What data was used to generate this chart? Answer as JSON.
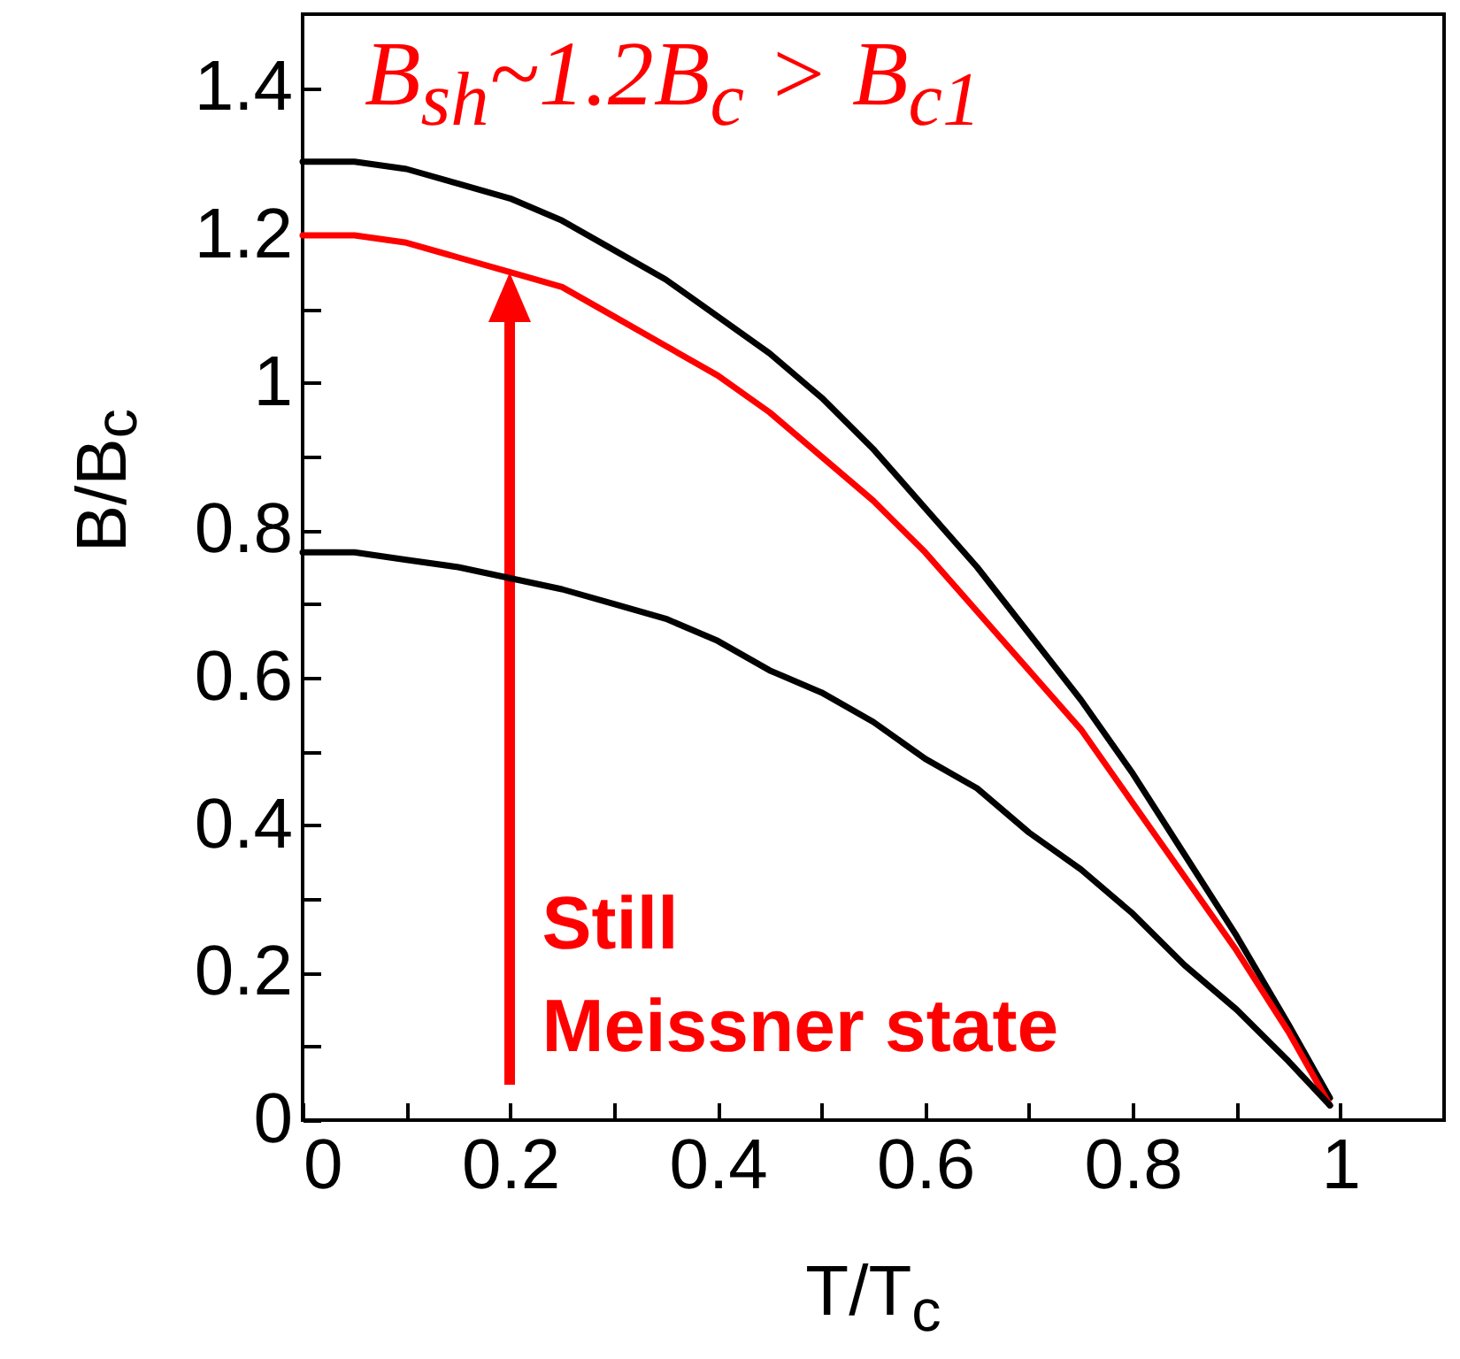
{
  "chart_data": {
    "type": "line",
    "xlabel": "T/T$_{c}$",
    "ylabel": "B/B$_{c}$",
    "x": [
      0,
      0.05,
      0.1,
      0.15,
      0.2,
      0.25,
      0.3,
      0.35,
      0.4,
      0.45,
      0.5,
      0.55,
      0.6,
      0.65,
      0.7,
      0.75,
      0.8,
      0.85,
      0.9,
      0.95,
      0.99
    ],
    "series": [
      {
        "color": "#000000",
        "values": [
          1.3,
          1.3,
          1.29,
          1.27,
          1.25,
          1.22,
          1.18,
          1.14,
          1.09,
          1.04,
          0.98,
          0.91,
          0.83,
          0.75,
          0.66,
          0.57,
          0.47,
          0.36,
          0.25,
          0.13,
          0.03
        ]
      },
      {
        "color": "#ff0000",
        "values": [
          1.2,
          1.2,
          1.19,
          1.17,
          1.15,
          1.13,
          1.09,
          1.05,
          1.01,
          0.96,
          0.9,
          0.84,
          0.77,
          0.69,
          0.61,
          0.53,
          0.43,
          0.33,
          0.23,
          0.12,
          0.02
        ]
      },
      {
        "color": "#000000",
        "x": [
          0,
          0.05,
          0.1,
          0.15,
          0.25,
          0.3,
          0.35,
          0.4,
          0.45,
          0.5,
          0.55,
          0.6,
          0.65,
          0.7,
          0.75,
          0.8,
          0.85,
          0.9,
          0.95,
          0.99
        ],
        "values": [
          0.77,
          0.77,
          0.76,
          0.75,
          0.72,
          0.7,
          0.68,
          0.65,
          0.61,
          0.58,
          0.54,
          0.49,
          0.45,
          0.39,
          0.34,
          0.28,
          0.21,
          0.15,
          0.08,
          0.02
        ]
      }
    ],
    "xlim": [
      0,
      1.1
    ],
    "ylim": [
      0,
      1.5
    ],
    "xticks": [
      0,
      {
        "value": 0.1,
        "label": null
      },
      0.2,
      {
        "value": 0.3,
        "label": null
      },
      0.4,
      {
        "value": 0.5,
        "label": null
      },
      0.6,
      {
        "value": 0.7,
        "label": null
      },
      0.8,
      {
        "value": 0.9,
        "label": null
      },
      1
    ],
    "yticks": [
      0,
      {
        "value": 0.1,
        "label": null
      },
      0.2,
      {
        "value": 0.3,
        "label": null
      },
      0.4,
      {
        "value": 0.5,
        "label": null
      },
      0.6,
      {
        "value": 0.7,
        "label": null
      },
      0.8,
      {
        "value": 0.9,
        "label": null
      },
      1,
      {
        "value": 1.1,
        "label": null
      },
      1.2,
      {
        "value": 1.3,
        "label": null
      },
      1.4
    ],
    "marker": "none",
    "line_style": "solid",
    "grid": false,
    "annotations": [
      "B$_{sh}$~1.2B$_{c}$ > B$_{c1}$",
      "Still\nMeissner state"
    ]
  }
}
